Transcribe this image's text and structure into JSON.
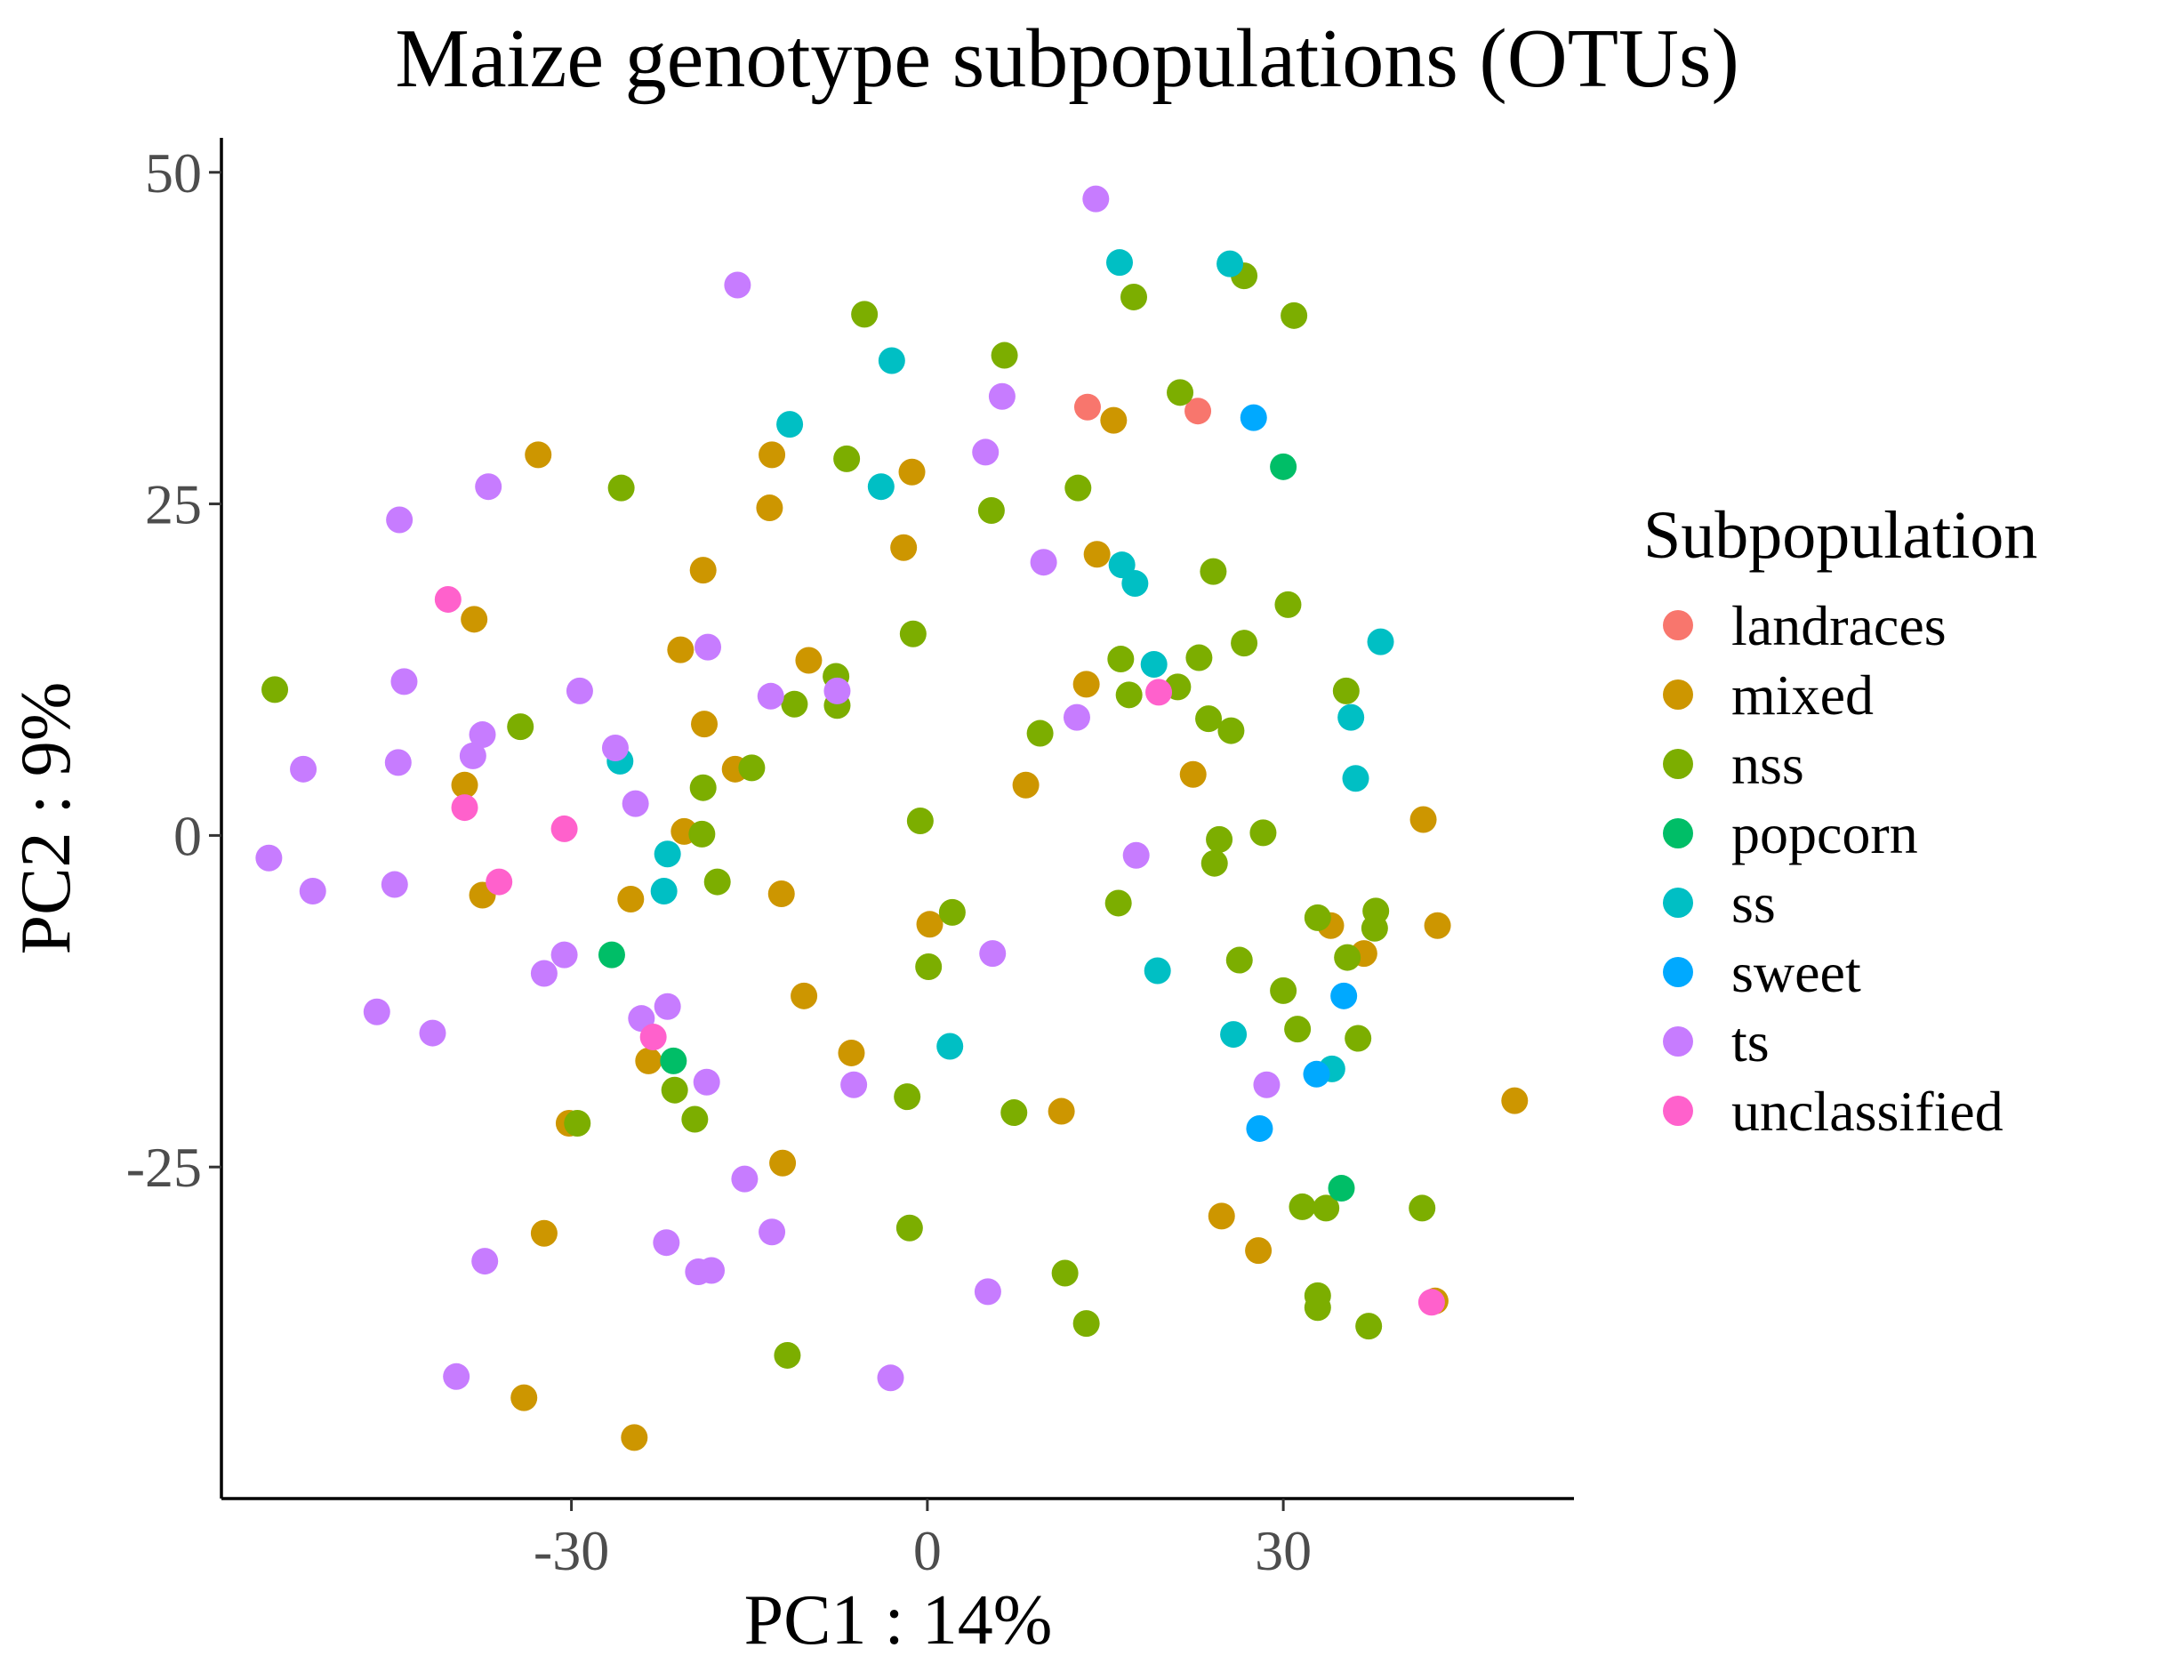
{
  "chart_data": {
    "type": "scatter",
    "title": "Maize genotype subpopulations (OTUs)",
    "xlabel": "PC1 : 14%",
    "ylabel": "PC2 : 9%",
    "xlim": [
      -59.5,
      54.5
    ],
    "ylim": [
      -50,
      52.6
    ],
    "xticks": [
      -30,
      0,
      30
    ],
    "yticks": [
      50,
      25,
      0,
      -25
    ],
    "xtick_labels": [
      "-30",
      "0",
      "30"
    ],
    "ytick_labels": [
      "50",
      "25",
      "0",
      "-25"
    ],
    "grid": false,
    "legend": {
      "title": "Subpopulation",
      "position": "right"
    },
    "series": [
      {
        "name": "landraces",
        "color": "#F8766D",
        "points": [
          [
            13.5,
            32.3
          ],
          [
            22.8,
            32.0
          ]
        ]
      },
      {
        "name": "mixed",
        "color": "#CD9600",
        "points": [
          [
            -32.8,
            28.7
          ],
          [
            -38.2,
            16.3
          ],
          [
            -39.0,
            3.8
          ],
          [
            -37.5,
            -4.5
          ],
          [
            -25.0,
            -4.8
          ],
          [
            -23.5,
            -17.0
          ],
          [
            -30.2,
            -21.7
          ],
          [
            -32.3,
            -30.0
          ],
          [
            -34.0,
            -42.4
          ],
          [
            -24.7,
            -45.4
          ],
          [
            -20.5,
            0.3
          ],
          [
            -16.2,
            5.0
          ],
          [
            -18.8,
            8.4
          ],
          [
            -20.8,
            14.0
          ],
          [
            -18.9,
            20.0
          ],
          [
            -13.1,
            28.7
          ],
          [
            -13.3,
            24.7
          ],
          [
            -10.0,
            13.2
          ],
          [
            -12.3,
            -4.4
          ],
          [
            -10.4,
            -12.1
          ],
          [
            -6.4,
            -16.4
          ],
          [
            -12.2,
            -24.7
          ],
          [
            -1.3,
            27.4
          ],
          [
            -2.0,
            21.7
          ],
          [
            0.2,
            -6.7
          ],
          [
            8.3,
            3.8
          ],
          [
            11.3,
            -20.8
          ],
          [
            13.4,
            11.4
          ],
          [
            14.3,
            21.2
          ],
          [
            15.7,
            31.3
          ],
          [
            22.4,
            4.6
          ],
          [
            24.8,
            -28.7
          ],
          [
            27.9,
            -31.3
          ],
          [
            34.0,
            -6.8
          ],
          [
            36.8,
            -8.9
          ],
          [
            41.8,
            1.2
          ],
          [
            43.0,
            -6.8
          ],
          [
            42.8,
            -35.1
          ],
          [
            49.5,
            -20.0
          ]
        ]
      },
      {
        "name": "nss",
        "color": "#7CAE00",
        "points": [
          [
            -55.0,
            11.0
          ],
          [
            -34.3,
            8.2
          ],
          [
            -25.8,
            26.2
          ],
          [
            -29.5,
            -21.7
          ],
          [
            -5.3,
            39.3
          ],
          [
            6.5,
            36.2
          ],
          [
            -6.8,
            28.4
          ],
          [
            -1.2,
            15.2
          ],
          [
            -7.7,
            12.0
          ],
          [
            -7.6,
            9.8
          ],
          [
            -11.2,
            9.9
          ],
          [
            -14.8,
            5.1
          ],
          [
            -18.9,
            3.6
          ],
          [
            -19.0,
            0.1
          ],
          [
            -17.7,
            -3.5
          ],
          [
            -19.6,
            -21.4
          ],
          [
            -21.3,
            -19.2
          ],
          [
            -11.8,
            -39.2
          ],
          [
            -1.5,
            -29.6
          ],
          [
            -1.7,
            -19.7
          ],
          [
            0.1,
            -9.9
          ],
          [
            -0.6,
            1.1
          ],
          [
            2.1,
            -5.8
          ],
          [
            5.4,
            24.5
          ],
          [
            7.3,
            -20.9
          ],
          [
            9.5,
            7.7
          ],
          [
            12.7,
            26.2
          ],
          [
            17.4,
            40.6
          ],
          [
            21.3,
            33.4
          ],
          [
            26.7,
            42.2
          ],
          [
            30.9,
            39.2
          ],
          [
            24.1,
            19.9
          ],
          [
            30.4,
            17.4
          ],
          [
            22.9,
            13.4
          ],
          [
            26.7,
            14.5
          ],
          [
            21.1,
            11.2
          ],
          [
            16.3,
            13.3
          ],
          [
            17.0,
            10.6
          ],
          [
            23.7,
            8.8
          ],
          [
            25.6,
            7.9
          ],
          [
            35.3,
            10.9
          ],
          [
            24.6,
            -0.3
          ],
          [
            24.2,
            -2.1
          ],
          [
            28.3,
            0.2
          ],
          [
            16.1,
            -5.1
          ],
          [
            26.3,
            -9.4
          ],
          [
            30.0,
            -11.7
          ],
          [
            31.2,
            -14.6
          ],
          [
            32.9,
            -6.2
          ],
          [
            35.4,
            -9.2
          ],
          [
            37.8,
            -5.7
          ],
          [
            37.7,
            -7.0
          ],
          [
            36.3,
            -15.3
          ],
          [
            31.6,
            -28.0
          ],
          [
            33.6,
            -28.1
          ],
          [
            32.9,
            -34.7
          ],
          [
            32.9,
            -35.6
          ],
          [
            37.2,
            -37.0
          ],
          [
            41.7,
            -28.1
          ],
          [
            11.6,
            -33.0
          ],
          [
            13.4,
            -36.8
          ]
        ]
      },
      {
        "name": "popcorn",
        "color": "#00BE67",
        "points": [
          [
            -26.6,
            -9.0
          ],
          [
            -21.4,
            -17.0
          ],
          [
            30.0,
            27.8
          ],
          [
            34.9,
            -26.6
          ]
        ]
      },
      {
        "name": "ss",
        "color": "#00BFC4",
        "points": [
          [
            -3.0,
            35.8
          ],
          [
            -11.6,
            31.0
          ],
          [
            -3.9,
            26.3
          ],
          [
            16.2,
            43.2
          ],
          [
            25.5,
            43.1
          ],
          [
            16.4,
            20.4
          ],
          [
            17.5,
            19.0
          ],
          [
            19.1,
            12.9
          ],
          [
            35.7,
            8.9
          ],
          [
            36.1,
            4.3
          ],
          [
            38.2,
            14.6
          ],
          [
            -25.9,
            5.6
          ],
          [
            -21.9,
            -1.4
          ],
          [
            -22.2,
            -4.2
          ],
          [
            1.9,
            -15.9
          ],
          [
            19.4,
            -10.2
          ],
          [
            25.8,
            -15.0
          ],
          [
            34.1,
            -17.6
          ]
        ]
      },
      {
        "name": "sweet",
        "color": "#00A9FF",
        "points": [
          [
            27.5,
            31.5
          ],
          [
            35.1,
            -12.1
          ],
          [
            32.8,
            -18.0
          ],
          [
            28.0,
            -22.1
          ]
        ]
      },
      {
        "name": "ts",
        "color": "#C77CFF",
        "points": [
          [
            14.2,
            48.0
          ],
          [
            -16.0,
            41.5
          ],
          [
            6.3,
            33.1
          ],
          [
            4.9,
            28.9
          ],
          [
            9.8,
            20.6
          ],
          [
            -44.5,
            23.8
          ],
          [
            -37.0,
            26.3
          ],
          [
            -44.1,
            11.6
          ],
          [
            -29.3,
            10.9
          ],
          [
            -13.2,
            10.5
          ],
          [
            -7.6,
            10.9
          ],
          [
            -18.5,
            14.2
          ],
          [
            -37.5,
            7.6
          ],
          [
            -38.3,
            6.0
          ],
          [
            -44.6,
            5.5
          ],
          [
            -26.3,
            6.6
          ],
          [
            -24.6,
            2.4
          ],
          [
            -52.6,
            5.0
          ],
          [
            -55.5,
            -1.7
          ],
          [
            -51.8,
            -4.2
          ],
          [
            -44.9,
            -3.7
          ],
          [
            -46.4,
            -13.3
          ],
          [
            -41.7,
            -14.9
          ],
          [
            -32.3,
            -10.4
          ],
          [
            -30.6,
            -9.0
          ],
          [
            -24.1,
            -13.8
          ],
          [
            -21.9,
            -12.9
          ],
          [
            -18.6,
            -18.6
          ],
          [
            -15.4,
            -25.9
          ],
          [
            -13.1,
            -29.9
          ],
          [
            -22.0,
            -30.7
          ],
          [
            -19.3,
            -32.9
          ],
          [
            -18.2,
            -32.8
          ],
          [
            -37.3,
            -32.1
          ],
          [
            -39.7,
            -40.8
          ],
          [
            -3.1,
            -40.9
          ],
          [
            5.1,
            -34.4
          ],
          [
            -6.2,
            -18.8
          ],
          [
            5.5,
            -8.9
          ],
          [
            12.6,
            8.9
          ],
          [
            17.6,
            -1.5
          ],
          [
            28.6,
            -18.8
          ]
        ]
      },
      {
        "name": "unclassified",
        "color": "#FF61CC",
        "points": [
          [
            -40.4,
            17.8
          ],
          [
            -39.0,
            2.1
          ],
          [
            -30.6,
            0.5
          ],
          [
            -36.1,
            -3.5
          ],
          [
            -23.1,
            -15.2
          ],
          [
            19.5,
            10.8
          ],
          [
            42.5,
            -35.2
          ]
        ]
      }
    ]
  }
}
